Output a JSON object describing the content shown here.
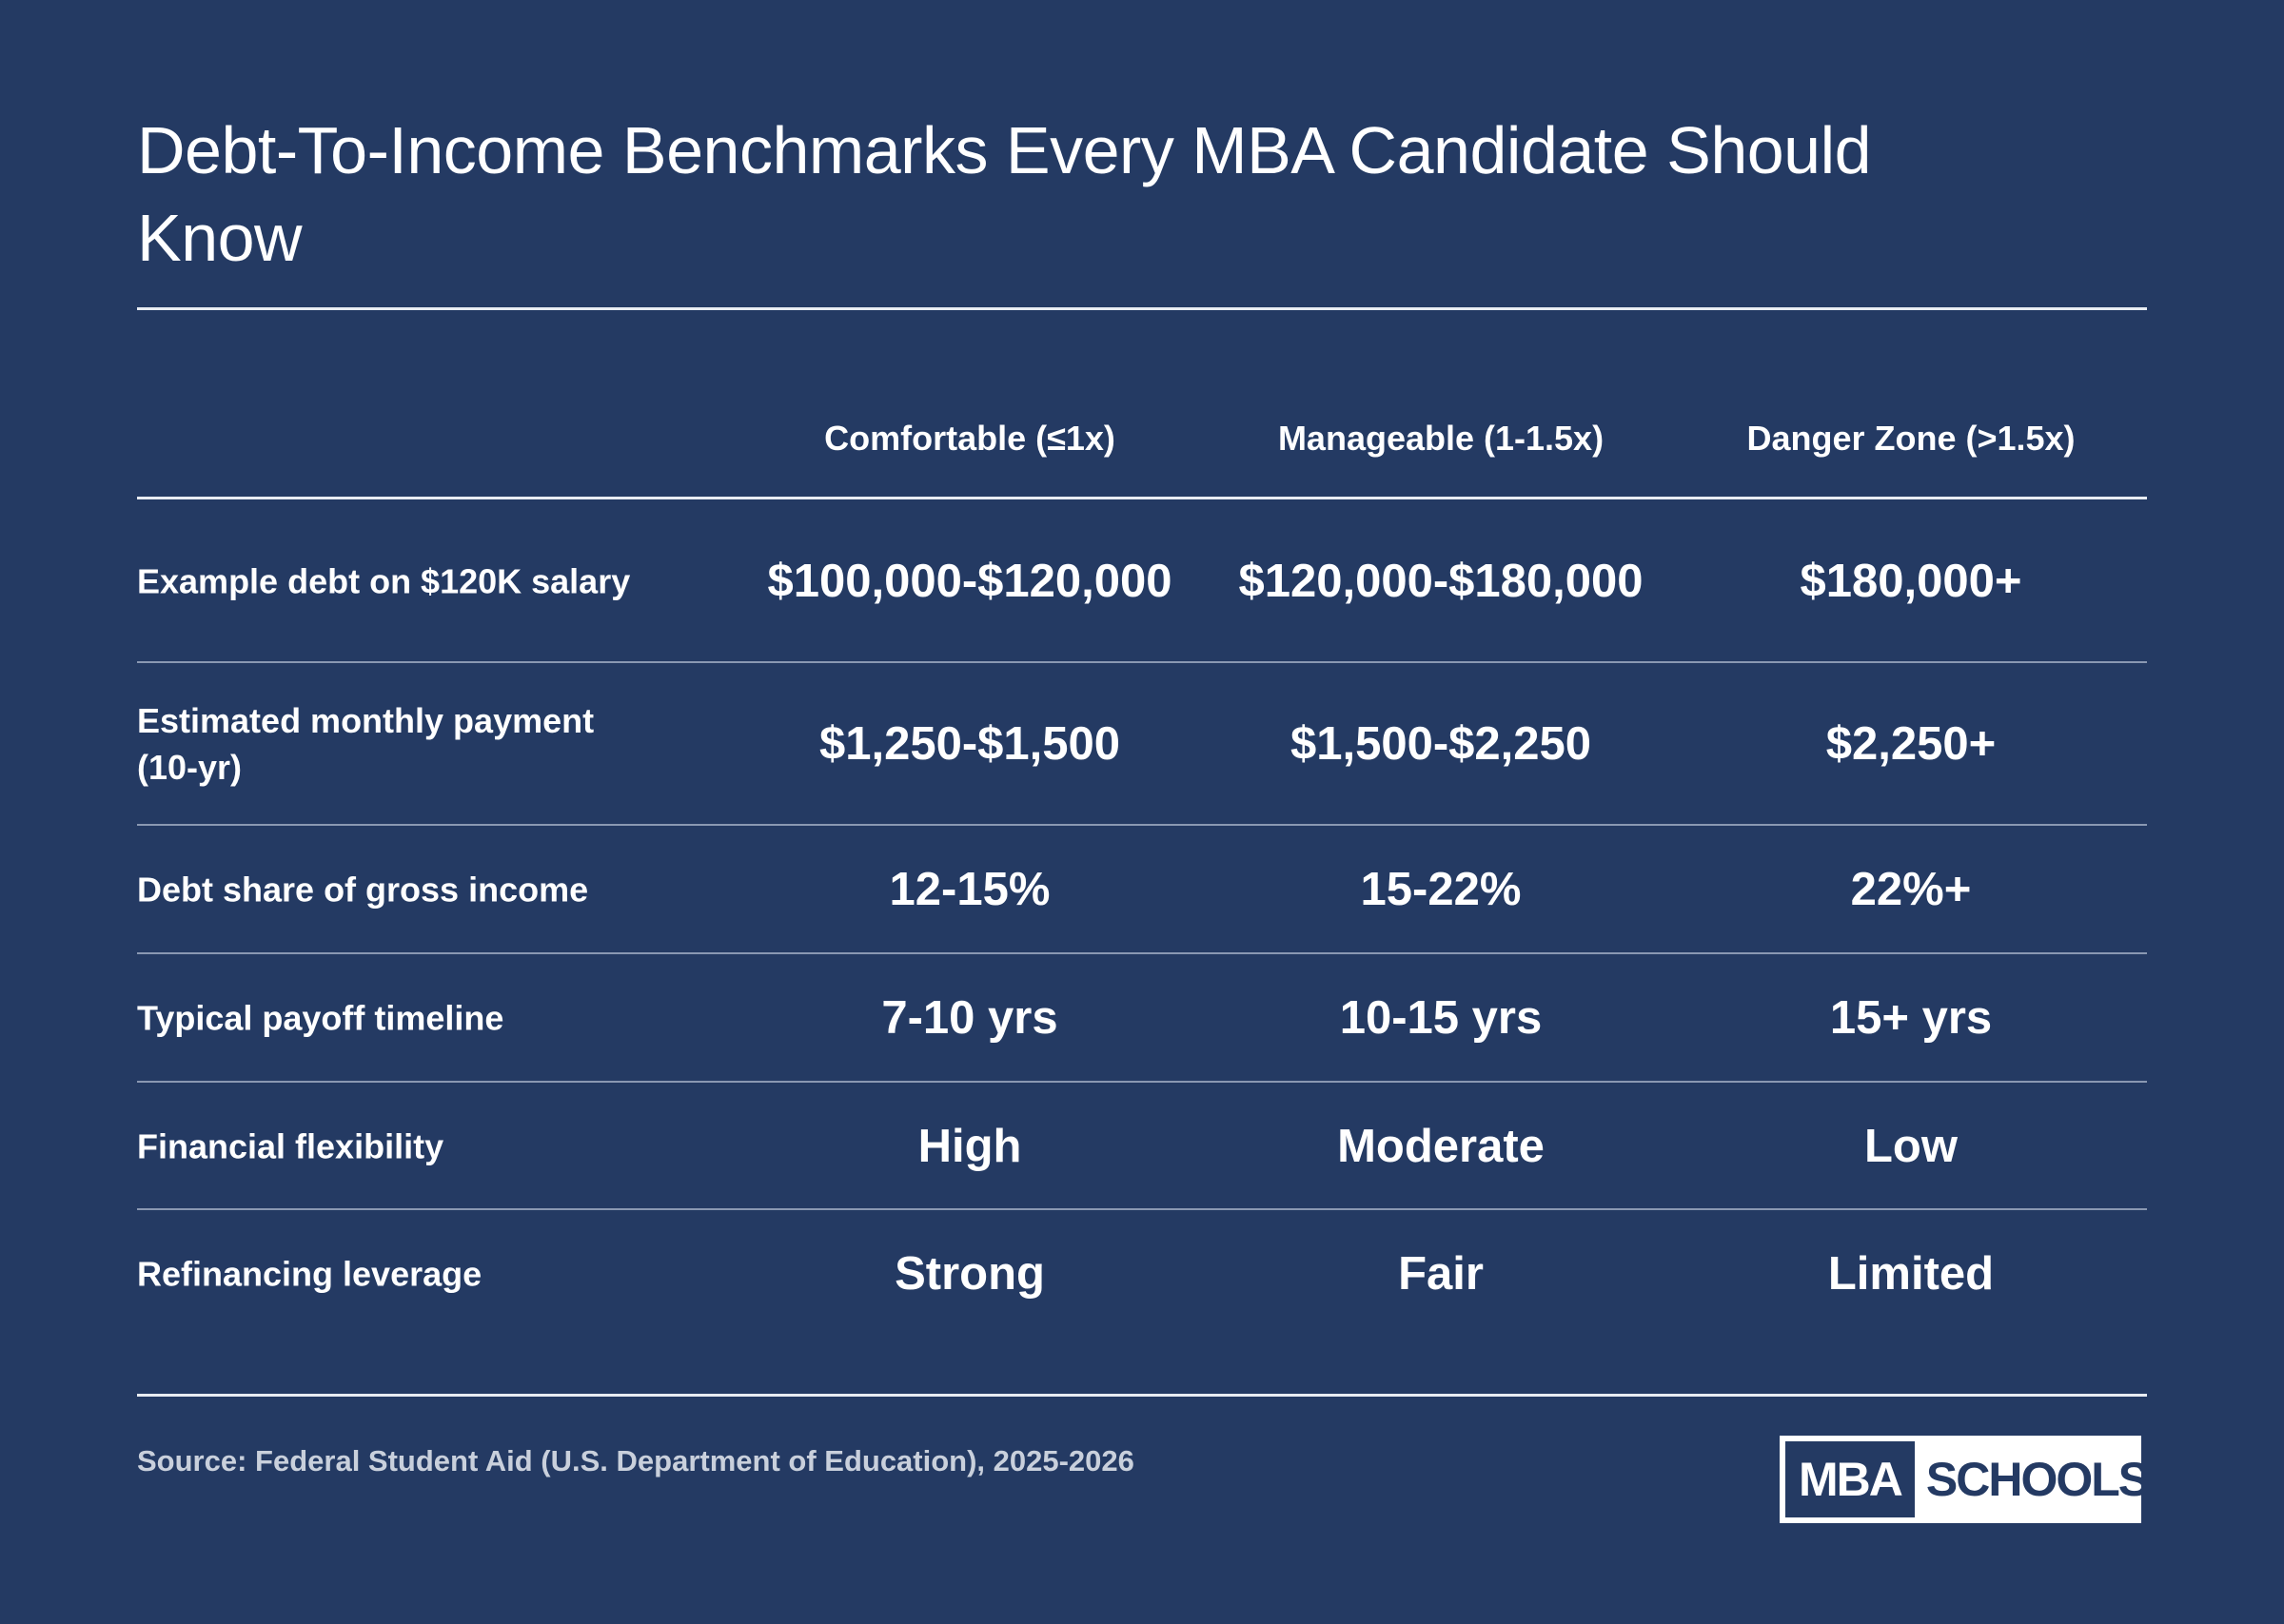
{
  "title": "Debt-To-Income Benchmarks Every MBA Candidate Should Know",
  "table": {
    "columns": [
      "Comfortable (≤1x)",
      "Manageable (1-1.5x)",
      "Danger Zone (>1.5x)"
    ],
    "rows": [
      {
        "label": "Example debt on $120K salary",
        "values": [
          "$100,000-$120,000",
          "$120,000-$180,000",
          "$180,000+"
        ]
      },
      {
        "label": "Estimated monthly payment (10-yr)",
        "values": [
          "$1,250-$1,500",
          "$1,500-$2,250",
          "$2,250+"
        ]
      },
      {
        "label": "Debt share of gross income",
        "values": [
          "12-15%",
          "15-22%",
          "22%+"
        ]
      },
      {
        "label": "Typical payoff timeline",
        "values": [
          "7-10 yrs",
          "10-15 yrs",
          "15+ yrs"
        ]
      },
      {
        "label": "Financial flexibility",
        "values": [
          "High",
          "Moderate",
          "Low"
        ]
      },
      {
        "label": "Refinancing leverage",
        "values": [
          "Strong",
          "Fair",
          "Limited"
        ]
      }
    ]
  },
  "source": "Source: Federal Student Aid (U.S. Department of Education), 2025-2026",
  "logo": {
    "left": "MBA",
    "right": "SCHOOLS"
  }
}
